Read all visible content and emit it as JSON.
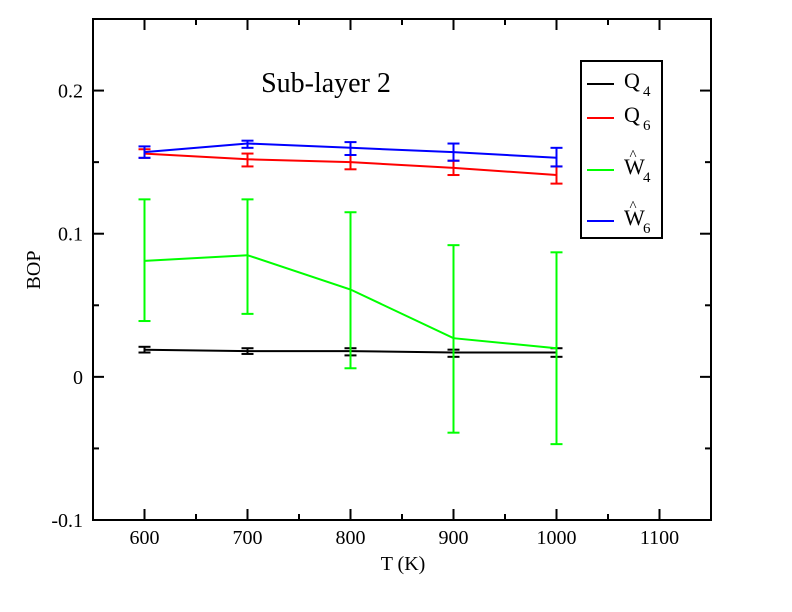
{
  "chart_data": {
    "type": "line",
    "title": "Sub-layer 2",
    "xlabel": "T (K)",
    "ylabel": "BOP",
    "xlim": [
      550,
      1150
    ],
    "ylim": [
      -0.1,
      0.25
    ],
    "x_ticks": [
      600,
      700,
      800,
      900,
      1000,
      1100
    ],
    "x_tick_labels": [
      "600",
      "700",
      "800",
      "900",
      "1000",
      "1100"
    ],
    "y_ticks": [
      -0.1,
      0,
      0.1,
      0.2
    ],
    "y_tick_labels": [
      "-0.1",
      "0",
      "0.1",
      "0.2"
    ],
    "x": [
      600,
      700,
      800,
      900,
      1000
    ],
    "legend_position": "top-right",
    "grid": false,
    "series": [
      {
        "name": "Q4",
        "legend_base": "Q",
        "legend_sub": "4",
        "hat": false,
        "color": "#000000",
        "values": [
          0.019,
          0.018,
          0.018,
          0.017,
          0.017
        ],
        "err_lo": [
          0.017,
          0.016,
          0.015,
          0.014,
          0.014
        ],
        "err_hi": [
          0.021,
          0.02,
          0.02,
          0.019,
          0.02
        ]
      },
      {
        "name": "Q6",
        "legend_base": "Q",
        "legend_sub": "6",
        "hat": false,
        "color": "#ff0000",
        "values": [
          0.156,
          0.152,
          0.15,
          0.146,
          0.141
        ],
        "err_lo": [
          0.153,
          0.147,
          0.145,
          0.141,
          0.135
        ],
        "err_hi": [
          0.159,
          0.156,
          0.155,
          0.151,
          0.147
        ]
      },
      {
        "name": "W4",
        "legend_base": "W",
        "legend_sub": "4",
        "hat": true,
        "color": "#00ff00",
        "values": [
          0.081,
          0.085,
          0.061,
          0.027,
          0.02
        ],
        "err_lo": [
          0.039,
          0.044,
          0.006,
          -0.039,
          -0.047
        ],
        "err_hi": [
          0.124,
          0.124,
          0.115,
          0.092,
          0.087
        ]
      },
      {
        "name": "W6",
        "legend_base": "W",
        "legend_sub": "6",
        "hat": true,
        "color": "#0000ff",
        "values": [
          0.157,
          0.163,
          0.16,
          0.157,
          0.153
        ],
        "err_lo": [
          0.153,
          0.16,
          0.155,
          0.151,
          0.147
        ],
        "err_hi": [
          0.161,
          0.165,
          0.164,
          0.163,
          0.16
        ]
      }
    ]
  }
}
